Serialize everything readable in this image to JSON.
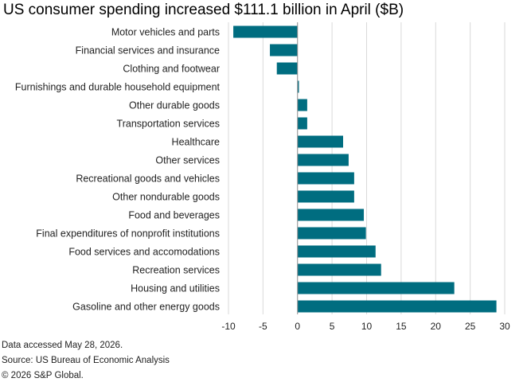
{
  "title": "US consumer spending increased $111.1 billion in April ($B)",
  "footnotes": {
    "accessed": "Data accessed May 28, 2026.",
    "source": "Source: US Bureau of Economic Analysis",
    "copyright": "© 2026 S&P Global."
  },
  "colors": {
    "bar": "#006d80",
    "grid": "#d9d9d9",
    "zero_line": "#8c8c8c"
  },
  "chart_data": {
    "type": "bar",
    "orientation": "horizontal",
    "title": "US consumer spending increased $111.1 billion in April ($B)",
    "xlabel": "",
    "ylabel": "",
    "xlim": [
      -10,
      30
    ],
    "x_ticks": [
      -10,
      -5,
      0,
      5,
      10,
      15,
      20,
      25,
      30
    ],
    "grid": true,
    "legend": "none",
    "categories": [
      "Motor vehicles and parts",
      "Financial services and insurance",
      "Clothing and footwear",
      "Furnishings and durable household equipment",
      "Other durable goods",
      "Transportation services",
      "Healthcare",
      "Other services",
      "Recreational goods and vehicles",
      "Other nondurable goods",
      "Food and beverages",
      "Final expenditures of nonprofit institutions",
      "Food services and accomodations",
      "Recreation services",
      "Housing and utilities",
      "Gasoline and other energy goods"
    ],
    "values": [
      -9.3,
      -4.0,
      -3.0,
      0.2,
      1.4,
      1.4,
      6.6,
      7.4,
      8.2,
      8.2,
      9.6,
      9.9,
      11.3,
      12.1,
      22.7,
      28.8
    ]
  }
}
